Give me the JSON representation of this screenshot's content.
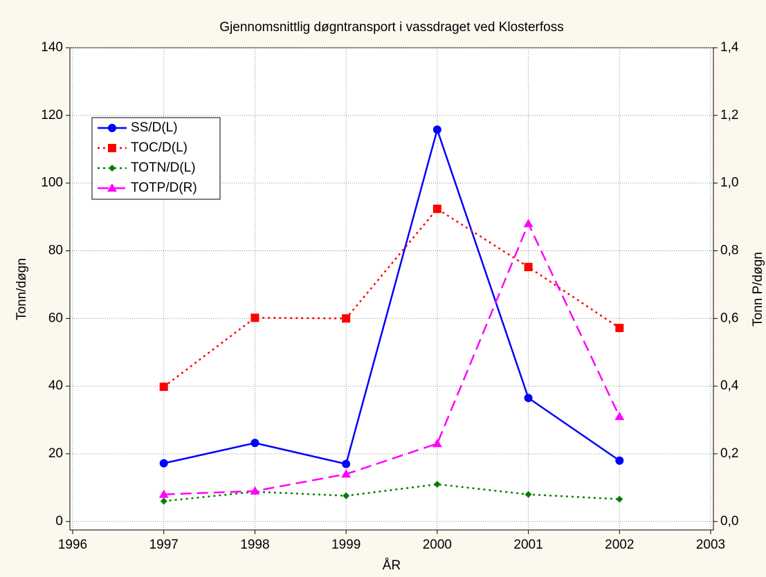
{
  "chart_data": {
    "type": "line",
    "title": "Gjennomsnittlig døgntransport i vassdraget ved Klosterfoss",
    "x_label": "ÅR",
    "y_label": "Tonn/døgn",
    "y2_label": "Tonn P/døgn",
    "x": [
      1997,
      1998,
      1999,
      2000,
      2001,
      2002
    ],
    "xlim": [
      1996,
      2003
    ],
    "xticks": [
      1996,
      1997,
      1998,
      1999,
      2000,
      2001,
      2002,
      2003
    ],
    "ylim": [
      -2.5,
      140
    ],
    "yticks": [
      0,
      20,
      40,
      60,
      80,
      100,
      120,
      140
    ],
    "y2lim": [
      -0.025,
      1.4
    ],
    "y2ticks": [
      {
        "value": 0,
        "label": "0,0"
      },
      {
        "value": 0.2,
        "label": "0,2"
      },
      {
        "value": 0.4,
        "label": "0,4"
      },
      {
        "value": 0.6,
        "label": "0,6"
      },
      {
        "value": 0.8,
        "label": "0,8"
      },
      {
        "value": 1.0,
        "label": "1,0"
      },
      {
        "value": 1.2,
        "label": "1,2"
      },
      {
        "value": 1.4,
        "label": "1,4"
      }
    ],
    "grid": true,
    "legend": "upper left",
    "series": [
      {
        "name": "SS/D(L)",
        "color": "#0000ff",
        "marker": "circle",
        "dash": "solid",
        "values": [
          17.2,
          23.2,
          17,
          115.8,
          36.5,
          18
        ]
      },
      {
        "name": "TOC/D(L)",
        "color": "#ff0000",
        "marker": "square",
        "dash": "dotted",
        "values": [
          39.8,
          60.2,
          60,
          92.4,
          75.2,
          57.2
        ]
      },
      {
        "name": "TOTN/D(L)",
        "color": "#008000",
        "marker": "diamond",
        "dash": "dotted",
        "values": [
          6,
          8.8,
          7.6,
          11,
          8,
          6.6
        ]
      },
      {
        "name": "TOTP/D(R)",
        "color": "#ff00ff",
        "marker": "triangle",
        "dash": "dashed",
        "axis": "y2",
        "values": [
          0.08,
          0.09,
          0.14,
          0.23,
          0.88,
          0.31
        ]
      }
    ]
  }
}
